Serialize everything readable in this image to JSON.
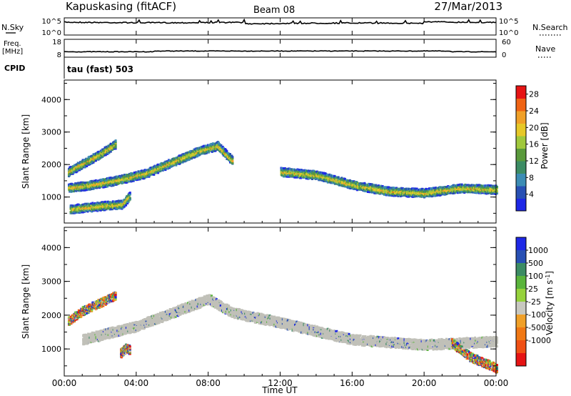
{
  "header": {
    "station": "Kapuskasing (fitACF)",
    "beam": "Beam 08",
    "date": "27/Mar/2013"
  },
  "noise_panel": {
    "left_label": "N.Sky",
    "right_label": "N.Search",
    "left_ticks": [
      "10^5",
      "10^0"
    ],
    "right_ticks": [
      "10^5",
      "10^0"
    ]
  },
  "freq_panel": {
    "left_label_line1": "Freq.",
    "left_label_line2": "[MHz]",
    "right_label": "Nave",
    "left_ticks": [
      "18",
      "8"
    ],
    "right_ticks": [
      "60",
      "0"
    ]
  },
  "cpid": {
    "label": "CPID",
    "value": "tau (fast) 503"
  },
  "x_axis": {
    "label": "Time UT",
    "ticks": [
      "00:00",
      "04:00",
      "08:00",
      "12:00",
      "16:00",
      "20:00",
      "00:00"
    ]
  },
  "colors": {
    "power_scale": [
      "#1e28e6",
      "#2850b4",
      "#3c8cb4",
      "#3c8c64",
      "#5a9a3c",
      "#a0c83c",
      "#e6c828",
      "#f0a028",
      "#f06414",
      "#e61414"
    ],
    "velocity_scale": [
      "#1e28e6",
      "#2850b4",
      "#3c8c64",
      "#5ab43c",
      "#96d23c",
      "#c8c8c0",
      "#f0a028",
      "#f07814",
      "#f05014",
      "#e61414"
    ],
    "ground_scatter": "#c0c0b8"
  },
  "chart_data": [
    {
      "type": "heatmap",
      "panel": "power",
      "ylabel": "Slant Range [km]",
      "y_ticks": [
        "1000",
        "2000",
        "3000",
        "4000"
      ],
      "ylim": [
        200,
        4600
      ],
      "xlim_hours": [
        0,
        24
      ],
      "colorbar": {
        "label": "Power [dB]",
        "tick_labels": [
          "28",
          "24",
          "20",
          "16",
          "12",
          "8",
          "4"
        ],
        "range": [
          0,
          30
        ]
      },
      "features": [
        {
          "name": "band-a",
          "t": [
            0.2,
            1.5,
            3,
            4.5,
            6,
            7.5,
            8.5,
            9.3
          ],
          "range_km": [
            1300,
            1400,
            1550,
            1750,
            2100,
            2450,
            2600,
            2150
          ]
        },
        {
          "name": "band-b",
          "t": [
            0.2,
            1,
            2,
            2.8
          ],
          "range_km": [
            1800,
            2050,
            2350,
            2650
          ]
        },
        {
          "name": "band-c",
          "t": [
            0.3,
            1.2,
            2.2,
            3.2,
            3.6
          ],
          "range_km": [
            650,
            700,
            760,
            800,
            1050
          ]
        },
        {
          "name": "band-d",
          "t": [
            12,
            14,
            16,
            18,
            20,
            22,
            24
          ],
          "range_km": [
            1800,
            1700,
            1400,
            1200,
            1150,
            1300,
            1250
          ]
        }
      ]
    },
    {
      "type": "heatmap",
      "panel": "velocity",
      "ylabel": "Slant Range [km]",
      "y_ticks": [
        "1000",
        "2000",
        "3000",
        "4000"
      ],
      "ylim": [
        200,
        4600
      ],
      "xlim_hours": [
        0,
        24
      ],
      "colorbar": {
        "label": "Velocity [m s^-1]",
        "tick_labels": [
          "1000",
          "500",
          "100",
          "25",
          "-25",
          "-100",
          "-500",
          "-1000"
        ],
        "range": [
          -1000,
          1000
        ]
      },
      "features": [
        {
          "name": "ground-scatter",
          "t": [
            1,
            4,
            8,
            9.3,
            12,
            16,
            20,
            24
          ],
          "range_km": [
            1300,
            1700,
            2500,
            2100,
            1800,
            1300,
            1150,
            1250
          ]
        },
        {
          "name": "ionospheric-a",
          "t": [
            0.2,
            1,
            2.8
          ],
          "range_km": [
            1850,
            2150,
            2600
          ]
        },
        {
          "name": "ionospheric-b",
          "t": [
            3.1,
            3.4,
            3.6
          ],
          "range_km": [
            900,
            1050,
            1000
          ]
        },
        {
          "name": "ionospheric-c",
          "t": [
            21.5,
            22.5,
            24
          ],
          "range_km": [
            1200,
            800,
            450
          ]
        }
      ]
    }
  ]
}
